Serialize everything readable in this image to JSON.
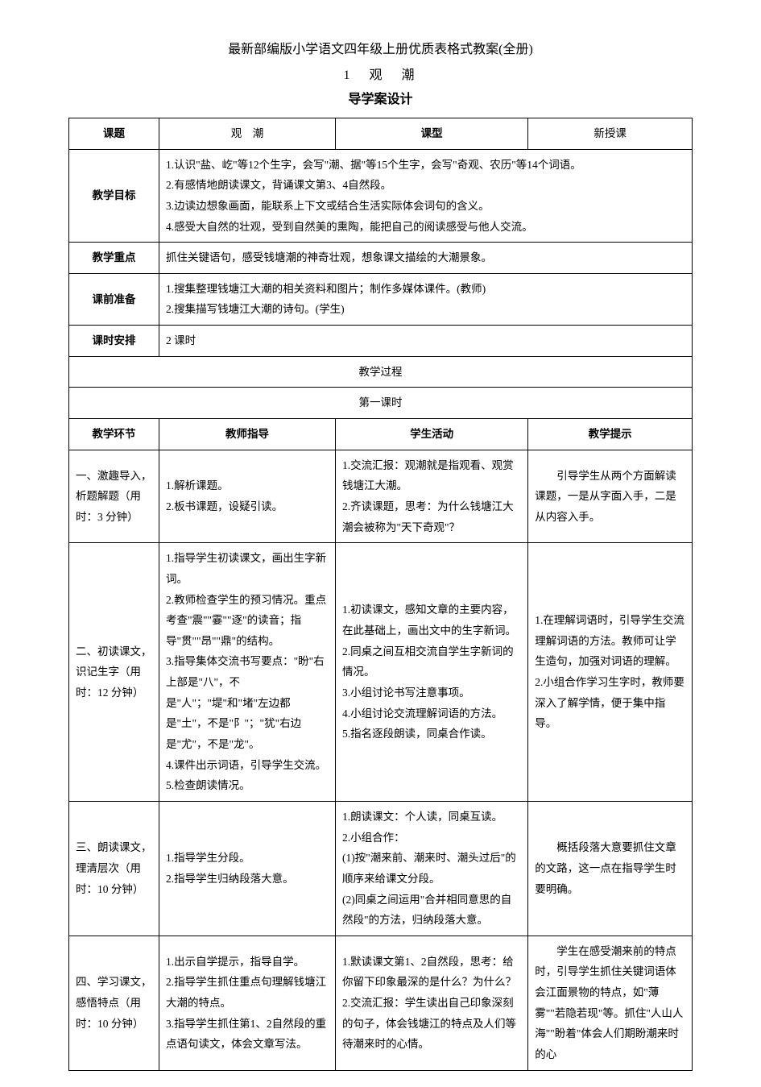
{
  "titles": {
    "main": "最新部编版小学语文四年级上册优质表格式教案(全册)",
    "lesson_num": "1　观　潮",
    "design": "导学案设计"
  },
  "header_row": {
    "keti_label": "课题",
    "keti_value": "观　潮",
    "kexing_label": "课型",
    "kexing_value": "新授课"
  },
  "rows": {
    "mubiao_label": "教学目标",
    "mubiao_text": "1.认识\"盐、屹\"等12个生字，会写\"潮、据\"等15个生字，会写\"奇观、农历\"等14个词语。\n2.有感情地朗读课文，背诵课文第3、4自然段。\n3.边读边想象画面，能联系上下文或结合生活实际体会词句的含义。\n4.感受大自然的壮观，受到自然美的熏陶，能把自己的阅读感受与他人交流。",
    "zhongdian_label": "教学重点",
    "zhongdian_text": "抓住关键语句，感受钱塘潮的神奇壮观，想象课文描绘的大潮景象。",
    "zhunbei_label": "课前准备",
    "zhunbei_text": "1.搜集整理钱塘江大潮的相关资料和图片；制作多媒体课件。(教师)\n2.搜集描写钱塘江大潮的诗句。(学生)",
    "anpai_label": "课时安排",
    "anpai_text": "2 课时"
  },
  "process": {
    "guocheng": "教学过程",
    "first_lesson": "第一课时",
    "col1": "教学环节",
    "col2": "教师指导",
    "col3": "学生活动",
    "col4": "教学提示"
  },
  "sections": {
    "s1": {
      "env": "一、激趣导入，析题解题（用时：3 分钟）",
      "teacher": "1.解析课题。\n2.板书课题，设疑引读。",
      "student": "1.交流汇报：观潮就是指观看、观赏钱塘江大潮。\n2.齐读课题，思考：为什么钱塘江大潮会被称为\"天下奇观\"？",
      "tip": "　　引导学生从两个方面解读课题，一是从字面入手，二是从内容入手。"
    },
    "s2": {
      "env": "二、初读课文，识记生字（用时：12 分钟）",
      "teacher": "1.指导学生初读课文，画出生字新词。\n2.教师检查学生的预习情况。重点考查\"震\"\"霎\"\"逐\"的读音；指导\"贯\"\"昂\"\"鼎\"的结构。\n3.指导集体交流书写要点：\"盼\"右上部是\"八\"，不是\"人\"；\"堤\"和\"堵\"左边都是\"土\"，不是\"阝\"；\"犹\"右边是\"尤\"，不是\"龙\"。\n4.课件出示词语，引导学生交流。\n5.检查朗读情况。",
      "student": "1.初读课文，感知文章的主要内容，在此基础上，画出文中的生字新词。\n2.同桌之间互相交流自学生字新词的情况。\n3.小组讨论书写注意事项。\n4.小组讨论交流理解词语的方法。\n5.指名逐段朗读，同桌合作读。",
      "tip": "1.在理解词语时，引导学生交流理解词语的方法。教师可让学生造句，加强对词语的理解。\n2.小组合作学习生字时，教师要深入了解学情，便于集中指导。"
    },
    "s3": {
      "env": "三、朗读课文，理清层次（用时：10 分钟）",
      "teacher": "1.指导学生分段。\n2.指导学生归纳段落大意。",
      "student": "1.朗读课文：个人读，同桌互读。\n2.小组合作：\n(1)按\"潮来前、潮来时、潮头过后\"的顺序来给课文分段。\n(2)同桌之间运用\"合并相同意思的自然段\"的方法，归纳段落大意。",
      "tip": "　　概括段落大意要抓住文章的文路，这一点在指导学生时要明确。"
    },
    "s4": {
      "env": "四、学习课文，感悟特点（用时：10 分钟）",
      "teacher": "1.出示自学提示，指导自学。\n2.指导学生抓住重点句理解钱塘江大潮的特点。\n3.指导学生抓住第1、2自然段的重点语句读文，体会文章写法。",
      "student": "1.默读课文第1、2自然段，思考：给你留下印象最深的是什么？为什么？\n2.交流汇报：学生读出自己印象深刻的句子，体会钱塘江的特点及人们等待潮来时的心情。",
      "tip": "　　学生在感受潮来前的特点时，引导学生抓住关键词语体会江面景物的特点，如\"薄雾\"\"若隐若现\"等。抓住\"人山人海\"\"盼着\"体会人们期盼潮来时的心"
    }
  }
}
